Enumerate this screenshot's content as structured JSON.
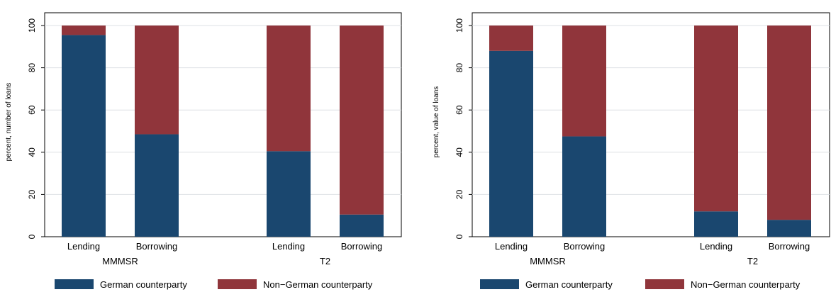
{
  "colors": {
    "german": "#1a476f",
    "non_german": "#90353b",
    "grid": "#dde0e4",
    "frame": "#000000"
  },
  "chart_data": [
    {
      "type": "bar",
      "stacked": true,
      "ylabel": "percent, number of loans",
      "ylim": [
        0,
        100
      ],
      "yticks": [
        0,
        20,
        40,
        60,
        80,
        100
      ],
      "grid": true,
      "groups": [
        {
          "name": "MMMSR",
          "categories": [
            "Lending",
            "Borrowing"
          ]
        },
        {
          "name": "T2",
          "categories": [
            "Lending",
            "Borrowing"
          ]
        }
      ],
      "series": [
        {
          "name": "German counterparty",
          "values": [
            95.5,
            48.5,
            40.5,
            10.5
          ]
        },
        {
          "name": "Non−German counterparty",
          "values": [
            4.5,
            51.5,
            59.5,
            89.5
          ]
        }
      ],
      "legend": "bottom"
    },
    {
      "type": "bar",
      "stacked": true,
      "ylabel": "percent, value of loans",
      "ylim": [
        0,
        100
      ],
      "yticks": [
        0,
        20,
        40,
        60,
        80,
        100
      ],
      "grid": true,
      "groups": [
        {
          "name": "MMMSR",
          "categories": [
            "Lending",
            "Borrowing"
          ]
        },
        {
          "name": "T2",
          "categories": [
            "Lending",
            "Borrowing"
          ]
        }
      ],
      "series": [
        {
          "name": "German counterparty",
          "values": [
            88,
            47.5,
            12,
            8
          ]
        },
        {
          "name": "Non−German counterparty",
          "values": [
            12,
            52.5,
            88,
            92
          ]
        }
      ],
      "legend": "bottom"
    }
  ]
}
